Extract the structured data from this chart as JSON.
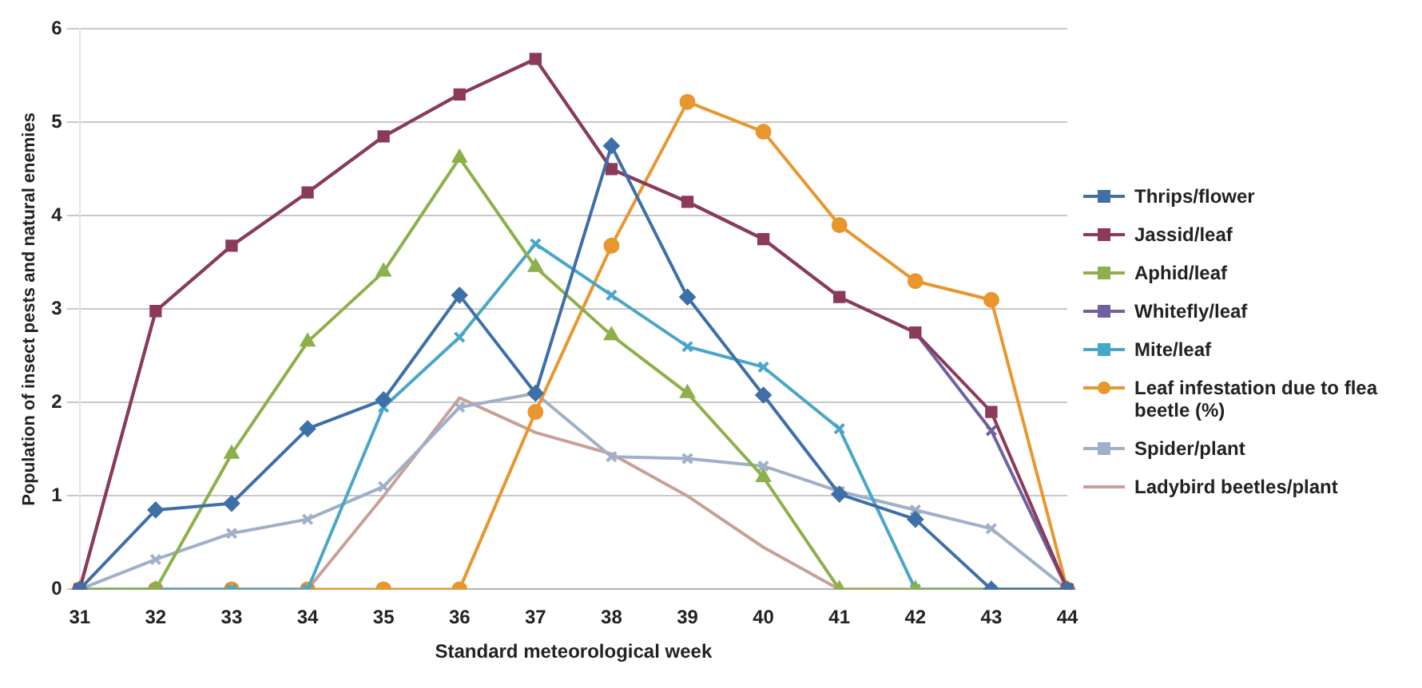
{
  "chart_data": {
    "type": "line",
    "xlabel": "Standard meteorological week",
    "ylabel": "Population of insect pests and natural enemies",
    "categories": [
      "31",
      "32",
      "33",
      "34",
      "35",
      "36",
      "37",
      "38",
      "39",
      "40",
      "41",
      "42",
      "43",
      "44"
    ],
    "ylim": [
      0,
      6
    ],
    "yticks": [
      0,
      1,
      2,
      3,
      4,
      5,
      6
    ],
    "grid": "y",
    "legend": "right",
    "line_style": "solid",
    "series": [
      {
        "name": "Thrips/flower",
        "color": "#3f6fa8",
        "marker": "diamond",
        "values": [
          0,
          0.85,
          0.92,
          1.72,
          2.03,
          3.15,
          2.1,
          4.75,
          3.13,
          2.08,
          1.02,
          0.75,
          0,
          0
        ]
      },
      {
        "name": "Jassid/leaf",
        "color": "#8b3a5a",
        "marker": "square",
        "values": [
          0,
          2.98,
          3.68,
          4.25,
          4.85,
          5.3,
          5.68,
          4.5,
          4.15,
          3.75,
          3.13,
          2.75,
          1.9,
          0
        ]
      },
      {
        "name": "Aphid/leaf",
        "color": "#8db04a",
        "marker": "triangle",
        "values": [
          0,
          0,
          1.45,
          2.65,
          3.4,
          4.62,
          3.45,
          2.72,
          2.1,
          1.2,
          0,
          0,
          0,
          0
        ]
      },
      {
        "name": "Whitefly/leaf",
        "color": "#7060a0",
        "marker": "cross",
        "values": [
          0,
          2.98,
          3.68,
          4.25,
          4.85,
          5.3,
          5.68,
          4.5,
          4.15,
          3.75,
          3.13,
          2.75,
          1.7,
          0
        ]
      },
      {
        "name": "Mite/leaf",
        "color": "#4aa6c8",
        "marker": "cross",
        "values": [
          0,
          0,
          0,
          0,
          1.95,
          2.7,
          3.7,
          3.15,
          2.6,
          2.38,
          1.72,
          0,
          0,
          0
        ]
      },
      {
        "name": "Leaf infestation due to flea beetle (%)",
        "color": "#e8962e",
        "marker": "circle",
        "values": [
          0,
          0,
          0,
          0,
          0,
          0,
          1.9,
          3.68,
          5.22,
          4.9,
          3.9,
          3.3,
          3.1,
          0
        ]
      },
      {
        "name": "Spider/plant",
        "color": "#a0b0c8",
        "marker": "cross",
        "values": [
          0,
          0.32,
          0.6,
          0.75,
          1.1,
          1.95,
          2.1,
          1.42,
          1.4,
          1.32,
          1.05,
          0.85,
          0.65,
          0
        ]
      },
      {
        "name": "Ladybird beetles/plant",
        "color": "#c8a098",
        "marker": "none",
        "values": [
          0,
          0,
          0,
          0,
          1.0,
          2.05,
          1.68,
          1.45,
          1.0,
          0.45,
          0,
          0,
          0,
          0
        ]
      }
    ]
  }
}
